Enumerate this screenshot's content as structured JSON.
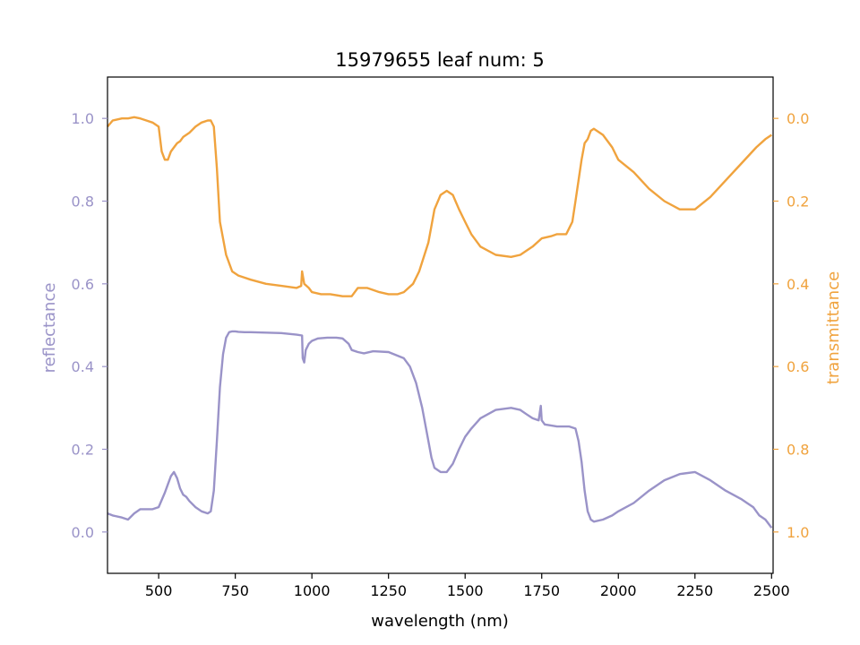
{
  "chart_data": {
    "type": "line",
    "title": "15979655 leaf num: 5",
    "xlabel": "wavelength (nm)",
    "ylabel_left": "reflectance",
    "ylabel_right": "transmittance",
    "xlim": [
      333,
      2505
    ],
    "ylim_left": [
      -0.1,
      1.1
    ],
    "ylim_right": [
      1.1,
      -0.1
    ],
    "x_ticks": [
      "500",
      "750",
      "1000",
      "1250",
      "1500",
      "1750",
      "2000",
      "2250",
      "2500"
    ],
    "y_ticks_left": [
      "0.0",
      "0.2",
      "0.4",
      "0.6",
      "0.8",
      "1.0"
    ],
    "y_ticks_right": [
      "0.0",
      "0.2",
      "0.4",
      "0.6",
      "0.8",
      "1.0"
    ],
    "grid": false,
    "colors": {
      "reflectance": "#9a93c8",
      "transmittance": "#f0a33e",
      "axis": "#000000"
    },
    "series": [
      {
        "axis": "left",
        "x": [
          333,
          350,
          380,
          400,
          420,
          440,
          460,
          480,
          500,
          520,
          530,
          540,
          550,
          560,
          570,
          580,
          590,
          600,
          620,
          640,
          660,
          670,
          680,
          690,
          700,
          710,
          720,
          730,
          740,
          750,
          760,
          780,
          800,
          850,
          900,
          950,
          968,
          970,
          975,
          980,
          990,
          1000,
          1020,
          1050,
          1080,
          1100,
          1120,
          1130,
          1150,
          1170,
          1200,
          1250,
          1300,
          1320,
          1340,
          1360,
          1380,
          1390,
          1400,
          1420,
          1440,
          1460,
          1480,
          1500,
          1520,
          1550,
          1600,
          1650,
          1680,
          1700,
          1720,
          1740,
          1747,
          1750,
          1760,
          1800,
          1840,
          1860,
          1870,
          1880,
          1890,
          1900,
          1905,
          1910,
          1920,
          1950,
          1980,
          2000,
          2050,
          2100,
          2150,
          2200,
          2250,
          2300,
          2350,
          2400,
          2420,
          2440,
          2460,
          2480,
          2490,
          2500
        ],
        "y": [
          0.045,
          0.04,
          0.035,
          0.03,
          0.045,
          0.055,
          0.055,
          0.055,
          0.06,
          0.095,
          0.115,
          0.135,
          0.145,
          0.13,
          0.105,
          0.09,
          0.085,
          0.075,
          0.06,
          0.05,
          0.045,
          0.05,
          0.1,
          0.22,
          0.35,
          0.43,
          0.47,
          0.483,
          0.485,
          0.485,
          0.484,
          0.483,
          0.483,
          0.482,
          0.481,
          0.477,
          0.475,
          0.42,
          0.41,
          0.44,
          0.455,
          0.462,
          0.468,
          0.47,
          0.47,
          0.468,
          0.455,
          0.44,
          0.435,
          0.432,
          0.437,
          0.435,
          0.42,
          0.4,
          0.36,
          0.3,
          0.22,
          0.18,
          0.155,
          0.145,
          0.145,
          0.165,
          0.2,
          0.23,
          0.25,
          0.275,
          0.295,
          0.3,
          0.295,
          0.285,
          0.275,
          0.27,
          0.305,
          0.27,
          0.26,
          0.255,
          0.255,
          0.25,
          0.22,
          0.17,
          0.1,
          0.05,
          0.04,
          0.03,
          0.025,
          0.03,
          0.04,
          0.05,
          0.07,
          0.1,
          0.125,
          0.14,
          0.145,
          0.125,
          0.1,
          0.08,
          0.07,
          0.06,
          0.04,
          0.03,
          0.02,
          0.01
        ]
      },
      {
        "axis": "right",
        "x": [
          333,
          350,
          380,
          400,
          420,
          440,
          460,
          480,
          500,
          510,
          520,
          530,
          540,
          550,
          560,
          570,
          580,
          600,
          620,
          640,
          660,
          670,
          680,
          690,
          700,
          720,
          740,
          760,
          780,
          800,
          850,
          900,
          950,
          965,
          968,
          975,
          990,
          1000,
          1030,
          1060,
          1100,
          1130,
          1150,
          1180,
          1200,
          1220,
          1250,
          1280,
          1300,
          1330,
          1350,
          1380,
          1400,
          1420,
          1440,
          1460,
          1480,
          1500,
          1520,
          1550,
          1600,
          1650,
          1680,
          1700,
          1720,
          1750,
          1780,
          1800,
          1830,
          1850,
          1860,
          1870,
          1880,
          1890,
          1900,
          1905,
          1910,
          1920,
          1950,
          1980,
          2000,
          2050,
          2100,
          2150,
          2200,
          2250,
          2300,
          2350,
          2400,
          2450,
          2480,
          2500
        ],
        "y": [
          0.02,
          0.005,
          0.0,
          0.0,
          -0.003,
          0.0,
          0.005,
          0.01,
          0.02,
          0.08,
          0.1,
          0.1,
          0.08,
          0.07,
          0.06,
          0.055,
          0.045,
          0.035,
          0.02,
          0.01,
          0.005,
          0.005,
          0.02,
          0.12,
          0.25,
          0.33,
          0.37,
          0.38,
          0.385,
          0.39,
          0.4,
          0.405,
          0.41,
          0.405,
          0.37,
          0.4,
          0.41,
          0.42,
          0.425,
          0.425,
          0.43,
          0.43,
          0.41,
          0.41,
          0.415,
          0.42,
          0.425,
          0.425,
          0.42,
          0.4,
          0.37,
          0.3,
          0.22,
          0.185,
          0.175,
          0.185,
          0.22,
          0.25,
          0.28,
          0.31,
          0.33,
          0.335,
          0.33,
          0.32,
          0.31,
          0.29,
          0.285,
          0.28,
          0.28,
          0.25,
          0.2,
          0.15,
          0.1,
          0.06,
          0.05,
          0.04,
          0.03,
          0.025,
          0.04,
          0.07,
          0.1,
          0.13,
          0.17,
          0.2,
          0.22,
          0.22,
          0.19,
          0.15,
          0.11,
          0.07,
          0.05,
          0.04
        ]
      }
    ]
  }
}
